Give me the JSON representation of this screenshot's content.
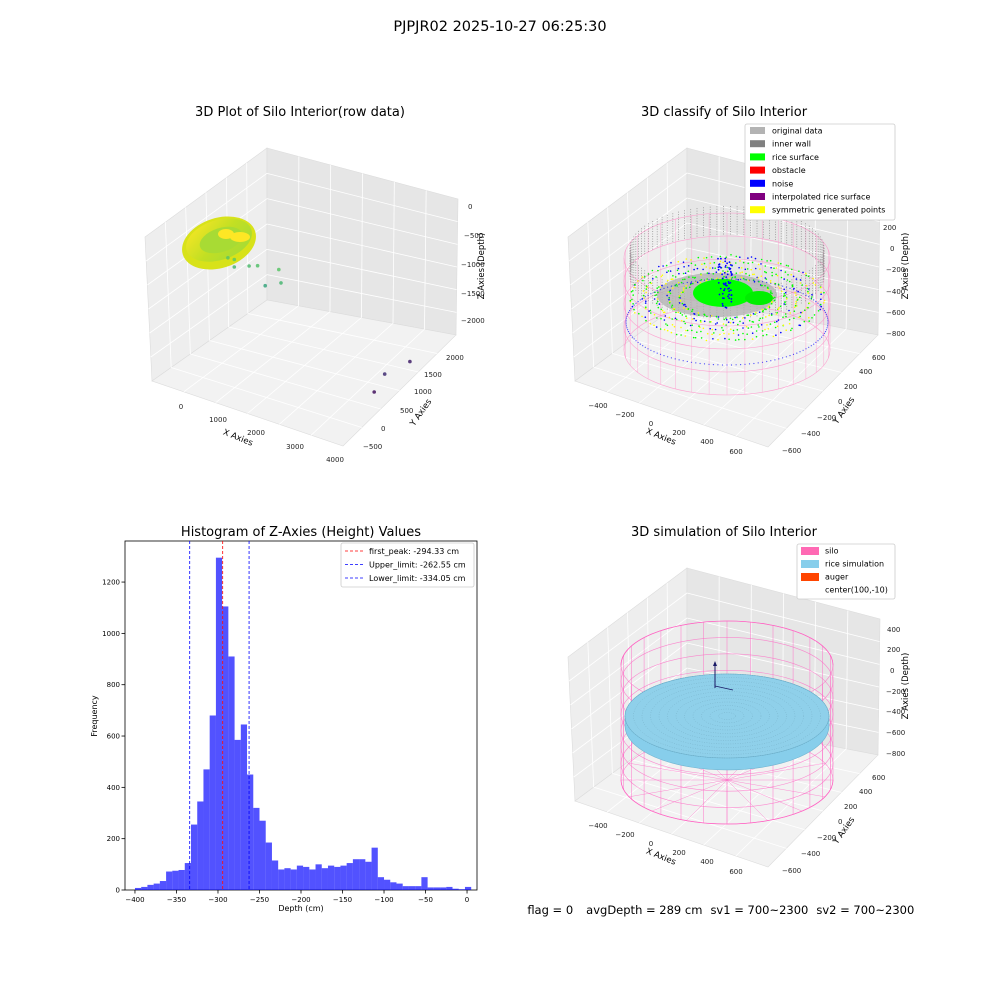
{
  "figure": {
    "suptitle": "PJPJR02 2025-10-27 06:25:30"
  },
  "chart_data": [
    {
      "type": "scatter",
      "projection": "3d",
      "title": "3D Plot of Silo Interior(row data)",
      "xlabel": "X Axies",
      "ylabel": "Y Axies",
      "zlabel": "Z Axies (Depth)",
      "xticks": [
        "0",
        "1000",
        "2000",
        "3000",
        "4000"
      ],
      "yticks": [
        "−500",
        "0",
        "500",
        "1000",
        "1500",
        "2000"
      ],
      "zticks": [
        "0",
        "−500",
        "−1000",
        "−1500",
        "−2000"
      ],
      "xlim": [
        -500,
        4000
      ],
      "ylim": [
        -500,
        2200
      ],
      "zlim": [
        -2200,
        0
      ],
      "colormap": "viridis",
      "outliers": [
        {
          "x": 500,
          "y": 300,
          "z": -600
        },
        {
          "x": 700,
          "y": 250,
          "z": -550
        },
        {
          "x": 600,
          "y": 350,
          "z": -750
        },
        {
          "x": 900,
          "y": 400,
          "z": -700
        },
        {
          "x": 1100,
          "y": 400,
          "z": -650
        },
        {
          "x": 1300,
          "y": 380,
          "z": -900
        },
        {
          "x": 1600,
          "y": 400,
          "z": -600
        },
        {
          "x": 1700,
          "y": 350,
          "z": -750
        },
        {
          "x": 3900,
          "y": 1200,
          "z": -2000
        },
        {
          "x": 3800,
          "y": 700,
          "z": -1900
        },
        {
          "x": 3700,
          "y": 550,
          "z": -2100
        }
      ]
    },
    {
      "type": "scatter",
      "projection": "3d",
      "title": "3D classify of Silo Interior",
      "xlabel": "X Axies",
      "ylabel": "Y Axies",
      "zlabel": "Z Axies (Depth)",
      "xticks": [
        "−400",
        "−200",
        "0",
        "200",
        "400",
        "600"
      ],
      "yticks": [
        "−600",
        "−400",
        "−200",
        "0",
        "200",
        "400",
        "600"
      ],
      "zticks": [
        "200",
        "0",
        "−200",
        "−400",
        "−600",
        "−800"
      ],
      "legend_position": "top-right",
      "legend": [
        {
          "label": "original data",
          "color": "#b3b3b3"
        },
        {
          "label": "inner wall",
          "color": "#808080"
        },
        {
          "label": "rice surface",
          "color": "#00ff00"
        },
        {
          "label": "obstacle",
          "color": "#ff0000"
        },
        {
          "label": "noise",
          "color": "#0000ff"
        },
        {
          "label": "interpolated rice surface",
          "color": "#800080"
        },
        {
          "label": "symmetric generated points",
          "color": "#ffff00"
        }
      ]
    },
    {
      "type": "bar",
      "title": "Histogram of Z-Axies (Height) Values",
      "xlabel": "Depth (cm)",
      "ylabel": "Frequency",
      "xlim": [
        -412,
        12
      ],
      "ylim": [
        0,
        1360
      ],
      "xticks": [
        -400,
        -350,
        -300,
        -250,
        -200,
        -150,
        -100,
        -50,
        0
      ],
      "yticks": [
        0,
        200,
        400,
        600,
        800,
        1000,
        1200
      ],
      "bar_color": "#0000ff",
      "bin_width": 7.5,
      "bins": [
        {
          "x": -400,
          "y": 8
        },
        {
          "x": -392.5,
          "y": 12
        },
        {
          "x": -385,
          "y": 20
        },
        {
          "x": -377.5,
          "y": 25
        },
        {
          "x": -370,
          "y": 35
        },
        {
          "x": -362.5,
          "y": 72
        },
        {
          "x": -355,
          "y": 75
        },
        {
          "x": -347.5,
          "y": 78
        },
        {
          "x": -340,
          "y": 105
        },
        {
          "x": -332.5,
          "y": 255
        },
        {
          "x": -325,
          "y": 345
        },
        {
          "x": -317.5,
          "y": 470
        },
        {
          "x": -310,
          "y": 680
        },
        {
          "x": -302.5,
          "y": 1295
        },
        {
          "x": -295,
          "y": 1105
        },
        {
          "x": -287.5,
          "y": 910
        },
        {
          "x": -280,
          "y": 585
        },
        {
          "x": -272.5,
          "y": 645
        },
        {
          "x": -265,
          "y": 450
        },
        {
          "x": -257.5,
          "y": 320
        },
        {
          "x": -250,
          "y": 270
        },
        {
          "x": -242.5,
          "y": 185
        },
        {
          "x": -235,
          "y": 115
        },
        {
          "x": -227.5,
          "y": 80
        },
        {
          "x": -220,
          "y": 85
        },
        {
          "x": -212.5,
          "y": 80
        },
        {
          "x": -205,
          "y": 95
        },
        {
          "x": -197.5,
          "y": 90
        },
        {
          "x": -190,
          "y": 80
        },
        {
          "x": -182.5,
          "y": 100
        },
        {
          "x": -175,
          "y": 85
        },
        {
          "x": -167.5,
          "y": 95
        },
        {
          "x": -160,
          "y": 90
        },
        {
          "x": -152.5,
          "y": 95
        },
        {
          "x": -145,
          "y": 105
        },
        {
          "x": -137.5,
          "y": 120
        },
        {
          "x": -130,
          "y": 120
        },
        {
          "x": -122.5,
          "y": 110
        },
        {
          "x": -115,
          "y": 165
        },
        {
          "x": -107.5,
          "y": 50
        },
        {
          "x": -100,
          "y": 40
        },
        {
          "x": -92.5,
          "y": 30
        },
        {
          "x": -85,
          "y": 25
        },
        {
          "x": -77.5,
          "y": 15
        },
        {
          "x": -70,
          "y": 15
        },
        {
          "x": -62.5,
          "y": 15
        },
        {
          "x": -55,
          "y": 50
        },
        {
          "x": -47.5,
          "y": 10
        },
        {
          "x": -40,
          "y": 10
        },
        {
          "x": -32.5,
          "y": 10
        },
        {
          "x": -25,
          "y": 12
        },
        {
          "x": -17.5,
          "y": 5
        },
        {
          "x": -10,
          "y": 3
        },
        {
          "x": -2.5,
          "y": 12
        }
      ],
      "vlines": [
        {
          "label": "first_peak: -294.33 cm",
          "x": -294.33,
          "color": "#ff0000"
        },
        {
          "label": "Upper_limit: -262.55 cm",
          "x": -262.55,
          "color": "#0000ff"
        },
        {
          "label": "Lower_limit: -334.05 cm",
          "x": -334.05,
          "color": "#0000ff"
        }
      ],
      "legend_position": "top-right"
    },
    {
      "type": "surface",
      "projection": "3d",
      "title": "3D simulation of Silo Interior",
      "xlabel": "X Axies",
      "ylabel": "Y Axies",
      "zlabel": "Z Axies (Depth)",
      "xticks": [
        "−400",
        "−200",
        "0",
        "200",
        "400",
        "600"
      ],
      "yticks": [
        "−600",
        "−400",
        "−200",
        "0",
        "200",
        "400",
        "600"
      ],
      "zticks": [
        "400",
        "200",
        "0",
        "−200",
        "−400",
        "−600",
        "−800"
      ],
      "legend_position": "top-right",
      "legend": [
        {
          "label": "silo",
          "color": "#ff69b4"
        },
        {
          "label": "rice simulation",
          "color": "#87ceeb"
        },
        {
          "label": "auger",
          "color": "#ff4500"
        },
        {
          "label": "center(100,-10)",
          "color": ""
        }
      ]
    }
  ],
  "status": {
    "flag": "flag = 0",
    "avg_depth": "avgDepth = 289 cm",
    "sv1": "sv1 = 700~2300",
    "sv2": "sv2 = 700~2300"
  }
}
